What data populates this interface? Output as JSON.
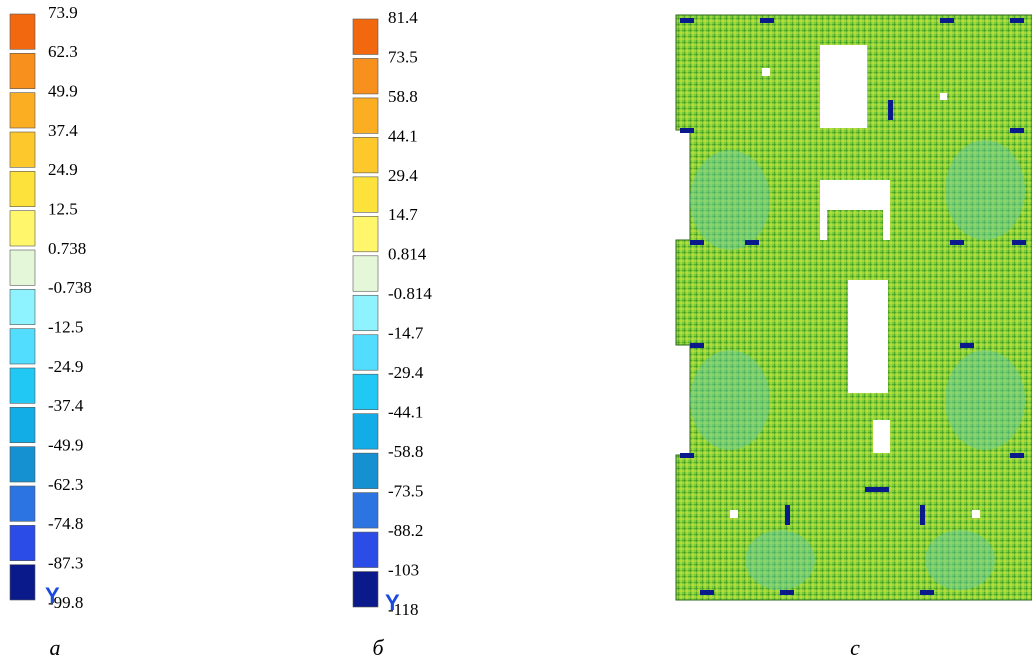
{
  "legend_a": {
    "labels": [
      "73.9",
      "62.3",
      "49.9",
      "37.4",
      "24.9",
      "12.5",
      "0.738",
      "-0.738",
      "-12.5",
      "-24.9",
      "-37.4",
      "-49.9",
      "-62.3",
      "-74.8",
      "-87.3",
      "-99.8"
    ],
    "colors": [
      "#f2680f",
      "#f7901c",
      "#fbae22",
      "#fcc82c",
      "#fde23c",
      "#fff66c",
      "#e4f8d9",
      "#8ef2ff",
      "#52ddff",
      "#22c8f4",
      "#12ade6",
      "#1590d0",
      "#2c74e2",
      "#2c4ce8",
      "#0a1a8a"
    ],
    "axis": "Y",
    "caption": "a"
  },
  "legend_b": {
    "labels": [
      "81.4",
      "73.5",
      "58.8",
      "44.1",
      "29.4",
      "14.7",
      "0.814",
      "-0.814",
      "-14.7",
      "-29.4",
      "-44.1",
      "-58.8",
      "-73.5",
      "-88.2",
      "-103",
      "-118"
    ],
    "colors": [
      "#f2680f",
      "#f7901c",
      "#fbae22",
      "#fcc82c",
      "#fde23c",
      "#fff66c",
      "#e4f8d9",
      "#8ef2ff",
      "#52ddff",
      "#22c8f4",
      "#12ade6",
      "#1590d0",
      "#2c74e2",
      "#2c4ce8",
      "#0a1a8a"
    ],
    "axis": "Y",
    "caption": "б"
  },
  "plot": {
    "caption": "c"
  }
}
